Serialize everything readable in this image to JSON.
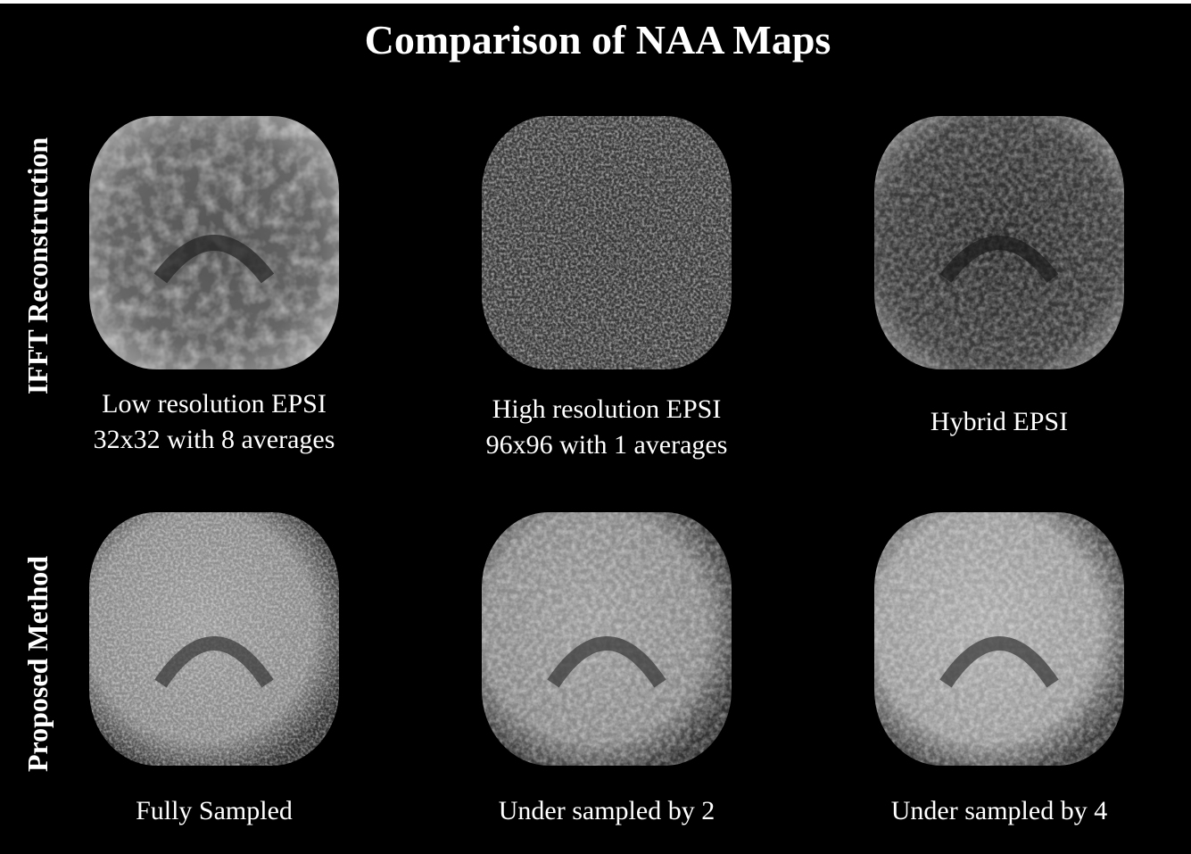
{
  "header": {
    "title": "Comparison of NAA Maps"
  },
  "rows": [
    {
      "label": "IFFT Reconstruction",
      "panels": [
        {
          "caption": [
            "Low resolution EPSI",
            "32x32 with 8 averages"
          ]
        },
        {
          "caption": [
            "High resolution EPSI",
            "96x96 with 1 averages"
          ]
        },
        {
          "caption": [
            "Hybrid EPSI"
          ]
        }
      ]
    },
    {
      "label": "Proposed Method",
      "panels": [
        {
          "caption": [
            "Fully Sampled"
          ]
        },
        {
          "caption": [
            "Under sampled by 2"
          ]
        },
        {
          "caption": [
            "Under sampled by 4"
          ]
        }
      ]
    }
  ]
}
